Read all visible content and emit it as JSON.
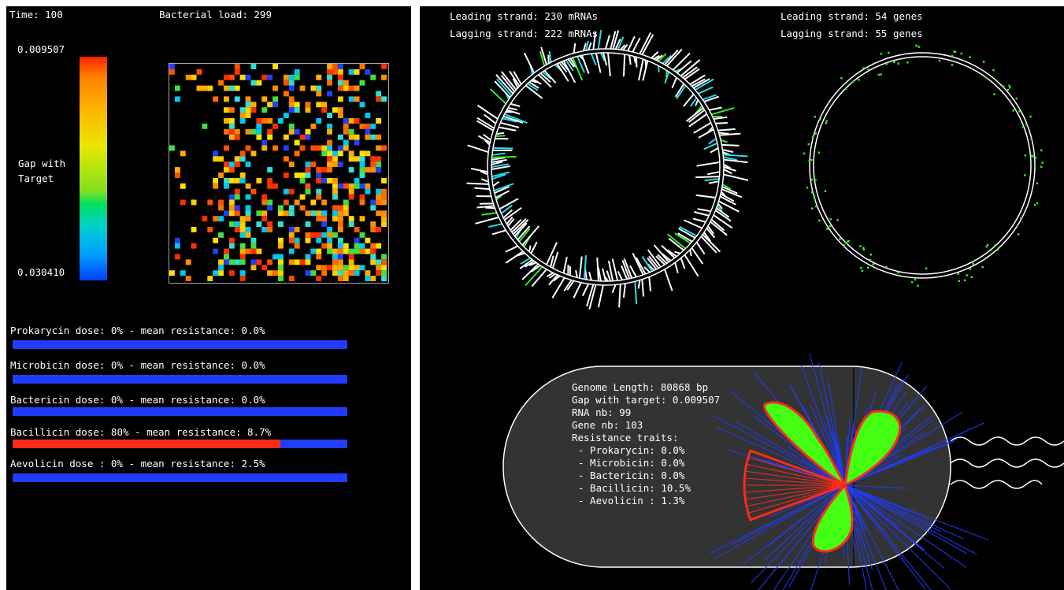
{
  "status": {
    "time": "Time: 100",
    "bacterial_load": "Bacterial load: 299"
  },
  "colorbar": {
    "top_value": "0.009507",
    "bottom_value": "0.030410",
    "label_line1": "Gap with",
    "label_line2": "Target"
  },
  "antibiotics": [
    {
      "label": "Prokarycin dose: 0% - mean resistance: 0.0%",
      "dose": 0.0
    },
    {
      "label": "Microbicin dose: 0% - mean resistance: 0.0%",
      "dose": 0.0
    },
    {
      "label": "Bactericin dose: 0% - mean resistance: 0.0%",
      "dose": 0.0
    },
    {
      "label": "Bacillicin dose: 80% - mean resistance: 8.7%",
      "dose": 0.8
    },
    {
      "label": "Aevolicin dose : 0% - mean resistance: 2.5%",
      "dose": 0.0
    }
  ],
  "strands": {
    "mrna_leading": "Leading strand: 230 mRNAs",
    "mrna_lagging": "Lagging strand: 222 mRNAs",
    "genes_leading": "Leading strand: 54 genes",
    "genes_lagging": "Lagging strand: 55 genes"
  },
  "cell": {
    "genome_length": "Genome Length: 80868 bp",
    "gap": "Gap with target: 0.009507",
    "rna": "RNA nb: 99",
    "genes": "Gene nb: 103",
    "traits_header": "Resistance traits:",
    "traits": [
      "- Prokarycin: 0.0%",
      "- Microbicin: 0.0%",
      "- Bactericin: 0.0%",
      "- Bacillicin: 10.5%",
      "- Aevolicin : 1.3%"
    ]
  },
  "colors": {
    "background": "#000000",
    "bar_blue": "#1f3cff",
    "bar_red": "#ff2a1a",
    "cell_fill": "#333333",
    "protein_green": "#44ff11",
    "cyan": "#22ddee",
    "gene_green": "#33ee22"
  }
}
